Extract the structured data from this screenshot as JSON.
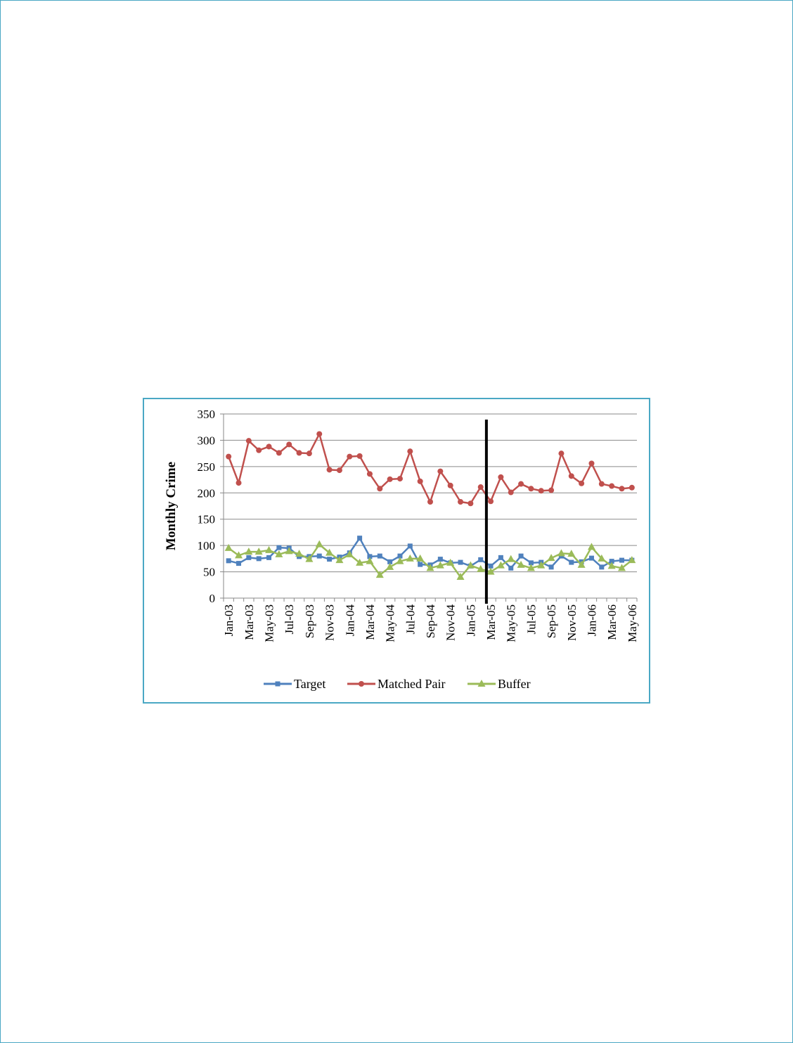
{
  "chart_data": {
    "type": "line",
    "title": "",
    "xlabel": "",
    "ylabel": "Monthly Crime",
    "ylim": [
      0,
      350
    ],
    "yticks": [
      0,
      50,
      100,
      150,
      200,
      250,
      300,
      350
    ],
    "grid": "horizontal",
    "legend": "bottom",
    "categories": [
      "Jan-03",
      "Feb-03",
      "Mar-03",
      "Apr-03",
      "May-03",
      "Jun-03",
      "Jul-03",
      "Aug-03",
      "Sep-03",
      "Oct-03",
      "Nov-03",
      "Dec-03",
      "Jan-04",
      "Feb-04",
      "Mar-04",
      "Apr-04",
      "May-04",
      "Jun-04",
      "Jul-04",
      "Aug-04",
      "Sep-04",
      "Oct-04",
      "Nov-04",
      "Dec-04",
      "Jan-05",
      "Feb-05",
      "Mar-05",
      "Apr-05",
      "May-05",
      "Jun-05",
      "Jul-05",
      "Aug-05",
      "Sep-05",
      "Oct-05",
      "Nov-05",
      "Dec-05",
      "Jan-06",
      "Feb-06",
      "Mar-06",
      "Apr-06",
      "May-06"
    ],
    "tick_labels": [
      "Jan-03",
      "Mar-03",
      "May-03",
      "Jul-03",
      "Sep-03",
      "Nov-03",
      "Jan-04",
      "Mar-04",
      "May-04",
      "Jul-04",
      "Sep-04",
      "Nov-04",
      "Jan-05",
      "Mar-05",
      "May-05",
      "Jul-05",
      "Sep-05",
      "Nov-05",
      "Jan-06",
      "Mar-06",
      "May-06"
    ],
    "intervention_category": "Mar-05",
    "series": [
      {
        "name": "Target",
        "color": "#4f81bd",
        "marker": "square",
        "values": [
          71,
          66,
          77,
          75,
          77,
          96,
          95,
          79,
          79,
          80,
          74,
          78,
          86,
          114,
          79,
          80,
          69,
          80,
          99,
          64,
          63,
          74,
          67,
          68,
          61,
          73,
          61,
          77,
          57,
          80,
          67,
          68,
          59,
          80,
          68,
          69,
          76,
          59,
          70,
          72,
          72
        ]
      },
      {
        "name": "Matched Pair",
        "color": "#c0504d",
        "marker": "circle",
        "values": [
          269,
          219,
          299,
          281,
          288,
          276,
          292,
          276,
          275,
          312,
          244,
          243,
          269,
          270,
          236,
          208,
          226,
          227,
          279,
          222,
          183,
          241,
          214,
          183,
          180,
          211,
          184,
          230,
          201,
          217,
          208,
          204,
          205,
          275,
          232,
          218,
          256,
          217,
          213,
          208,
          210
        ]
      },
      {
        "name": "Buffer",
        "color": "#9bbb59",
        "marker": "triangle",
        "values": [
          95,
          81,
          88,
          88,
          91,
          83,
          89,
          84,
          74,
          102,
          86,
          72,
          83,
          67,
          70,
          44,
          59,
          70,
          75,
          75,
          57,
          62,
          67,
          40,
          62,
          55,
          50,
          62,
          74,
          63,
          57,
          62,
          76,
          85,
          84,
          63,
          97,
          75,
          61,
          57,
          72
        ]
      }
    ]
  }
}
